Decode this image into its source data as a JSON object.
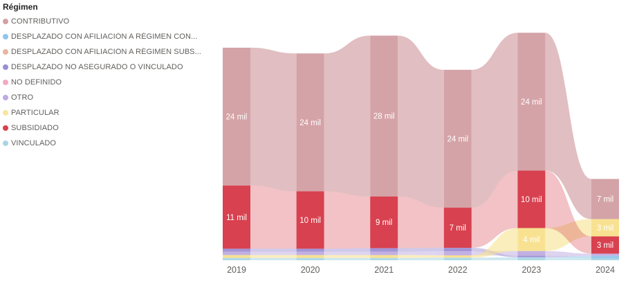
{
  "legend": {
    "title": "Régimen",
    "items": [
      {
        "label": "CONTRIBUTIVO",
        "color": "#d4a0a4"
      },
      {
        "label": "DESPLAZADO CON AFILIACIÓN A RÉGIMEN CON...",
        "color": "#92c4ea"
      },
      {
        "label": "DESPLAZADO CON AFILIACIÓN A RÉGIMEN SUBS...",
        "color": "#eab5a1"
      },
      {
        "label": "DESPLAZADO NO ASEGURADO O VINCULADO",
        "color": "#9a8fd2"
      },
      {
        "label": "NO DEFINIDO",
        "color": "#f2a9c6"
      },
      {
        "label": "OTRO",
        "color": "#bfaae2"
      },
      {
        "label": "PARTICULAR",
        "color": "#f7e6a0"
      },
      {
        "label": "SUBSIDIADO",
        "color": "#d8414f"
      },
      {
        "label": "VINCULADO",
        "color": "#aad5e2"
      }
    ]
  },
  "chart_data": {
    "type": "ribbon",
    "title": "Régimen",
    "unit": "mil",
    "legend_position": "left",
    "grid": false,
    "categories": [
      "2019",
      "2020",
      "2021",
      "2022",
      "2023",
      "2024"
    ],
    "series": [
      {
        "name": "CONTRIBUTIVO",
        "color": "#d4a3a7",
        "ribbon_color": "rgba(212,163,167,0.7)",
        "values": [
          24,
          24,
          28,
          24,
          24,
          7
        ],
        "labels": [
          "24 mil",
          "24 mil",
          "28 mil",
          "24 mil",
          "24 mil",
          "7 mil"
        ]
      },
      {
        "name": "SUBSIDIADO",
        "color": "#d8414f",
        "ribbon_color": "rgba(216,65,79,0.32)",
        "values": [
          11,
          10,
          9,
          7,
          10,
          3
        ],
        "labels": [
          "11 mil",
          "10 mil",
          "9 mil",
          "7 mil",
          "10 mil",
          "3 mil"
        ]
      },
      {
        "name": "PARTICULAR",
        "color": "#f8e292",
        "ribbon_color": "rgba(247,226,145,0.6)",
        "values": [
          0.5,
          0.5,
          0.5,
          0.4,
          4,
          3
        ],
        "labels": [
          null,
          null,
          null,
          null,
          "4 mil",
          "3 mil"
        ]
      },
      {
        "name": "DESPLAZADO NO ASEGURADO O VINCULADO",
        "color": "#a294d6",
        "ribbon_color": "rgba(162,148,214,0.5)",
        "values": [
          0.5,
          0.5,
          0.6,
          0.6,
          0.3,
          0
        ],
        "labels": [
          null,
          null,
          null,
          null,
          null,
          null
        ]
      },
      {
        "name": "OTRO",
        "color": "#c2b0e2",
        "ribbon_color": "rgba(194,176,226,0.55)",
        "values": [
          0.6,
          0.6,
          0.6,
          0.7,
          0.8,
          0.4
        ],
        "labels": [
          null,
          null,
          null,
          null,
          null,
          null
        ]
      },
      {
        "name": "DESPLAZADO CON AFILIACIÓN A RÉGIMEN CON...",
        "color": "#99c9ea",
        "ribbon_color": "rgba(153,201,234,0.55)",
        "values": [
          0.05,
          0.05,
          0.05,
          0.05,
          0.05,
          0.45
        ],
        "labels": [
          null,
          null,
          null,
          null,
          null,
          null
        ]
      },
      {
        "name": "VINCULADO",
        "color": "#aed9e4",
        "ribbon_color": "rgba(174,217,228,0.6)",
        "values": [
          0.35,
          0.35,
          0.35,
          0.4,
          0.45,
          0.3
        ],
        "labels": [
          null,
          null,
          null,
          null,
          null,
          null
        ]
      }
    ],
    "stack_order": [
      [
        "CONTRIBUTIVO",
        "SUBSIDIADO",
        "DESPLAZADO NO ASEGURADO O VINCULADO",
        "OTRO",
        "PARTICULAR",
        "DESPLAZADO CON AFILIACIÓN A RÉGIMEN CON...",
        "VINCULADO"
      ],
      [
        "CONTRIBUTIVO",
        "SUBSIDIADO",
        "DESPLAZADO NO ASEGURADO O VINCULADO",
        "OTRO",
        "PARTICULAR",
        "DESPLAZADO CON AFILIACIÓN A RÉGIMEN CON...",
        "VINCULADO"
      ],
      [
        "CONTRIBUTIVO",
        "SUBSIDIADO",
        "DESPLAZADO NO ASEGURADO O VINCULADO",
        "OTRO",
        "PARTICULAR",
        "DESPLAZADO CON AFILIACIÓN A RÉGIMEN CON...",
        "VINCULADO"
      ],
      [
        "CONTRIBUTIVO",
        "SUBSIDIADO",
        "DESPLAZADO NO ASEGURADO O VINCULADO",
        "OTRO",
        "PARTICULAR",
        "DESPLAZADO CON AFILIACIÓN A RÉGIMEN CON...",
        "VINCULADO"
      ],
      [
        "CONTRIBUTIVO",
        "SUBSIDIADO",
        "PARTICULAR",
        "OTRO",
        "DESPLAZADO NO ASEGURADO O VINCULADO",
        "DESPLAZADO CON AFILIACIÓN A RÉGIMEN CON...",
        "VINCULADO"
      ],
      [
        "CONTRIBUTIVO",
        "PARTICULAR",
        "SUBSIDIADO",
        "OTRO",
        "DESPLAZADO NO ASEGURADO O VINCULADO",
        "DESPLAZADO CON AFILIACIÓN A RÉGIMEN CON...",
        "VINCULADO"
      ]
    ],
    "ribbon_draw_order": [
      "CONTRIBUTIVO",
      "DESPLAZADO NO ASEGURADO O VINCULADO",
      "OTRO",
      "VINCULADO",
      "DESPLAZADO CON AFILIACIÓN A RÉGIMEN CON...",
      "PARTICULAR",
      "SUBSIDIADO"
    ],
    "label_color": "#ffffff",
    "axis_label_color": "#605e5c"
  }
}
